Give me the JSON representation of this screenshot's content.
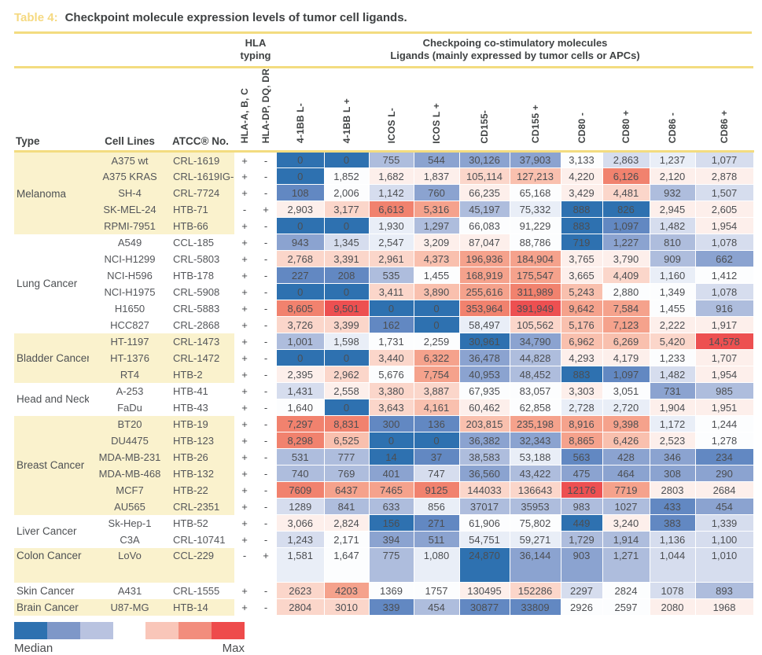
{
  "title": {
    "label": "Table 4:",
    "text": "Checkpoint molecule expression levels of tumor cell ligands."
  },
  "header": {
    "hla_group_line1": "HLA",
    "hla_group_line2": "typing",
    "costim_line1": "Checkpoing co-stimulatory molecules",
    "costim_line2": "Ligands (mainly expressed by tumor cells or APCs)",
    "col_type": "Type",
    "col_cell_lines": "Cell Lines",
    "col_atcc": "ATCC® No.",
    "rotated_columns": [
      "HLA-A, B, C",
      "HLA-DP, DQ, DR",
      "4-1BB L-",
      "4-1BB L +",
      "ICOS L-",
      "ICOS L +",
      "CD155-",
      "CD155 +",
      "CD80 -",
      "CD80 +",
      "CD86 -",
      "CD86 +"
    ]
  },
  "palette": {
    "b5": "#2e71b0",
    "b4": "#6288c2",
    "b3": "#8ba3d0",
    "b2": "#aebddd",
    "b1": "#d6ddee",
    "b0": "#e9eef7",
    "w": "#fcfdfe",
    "r0": "#fdefeb",
    "r1": "#fbd6ca",
    "r2": "#f9c0ae",
    "r3": "#f5a28c",
    "r4": "#f1826e",
    "r5": "#ed5051"
  },
  "groups": [
    {
      "type": "Melanoma",
      "shaded": true,
      "rows": [
        {
          "cell_line": "A375 wt",
          "atcc": "CRL-1619",
          "hla": [
            "+",
            "-"
          ],
          "values": [
            "0",
            "0",
            "755",
            "544",
            "30,126",
            "37,903",
            "3,133",
            "2,863",
            "1,237",
            "1,077"
          ],
          "colors": [
            "b5",
            "b5",
            "b2",
            "b3",
            "b3",
            "b3",
            "w",
            "b1",
            "b0",
            "b1"
          ]
        },
        {
          "cell_line": "A375 KRAS",
          "atcc": "CRL-1619IG-1",
          "hla": [
            "+",
            "-"
          ],
          "values": [
            "0",
            "1,852",
            "1,682",
            "1,837",
            "105,114",
            "127,213",
            "4,220",
            "6,126",
            "2,120",
            "2,878"
          ],
          "colors": [
            "b5",
            "w",
            "r0",
            "r0",
            "r1",
            "r2",
            "r0",
            "r4",
            "r0",
            "r0"
          ]
        },
        {
          "cell_line": "SH-4",
          "atcc": "CRL-7724",
          "hla": [
            "+",
            "-"
          ],
          "values": [
            "108",
            "2,006",
            "1,142",
            "760",
            "66,235",
            "65,168",
            "3,429",
            "4,481",
            "932",
            "1,507"
          ],
          "colors": [
            "b4",
            "w",
            "b1",
            "b3",
            "r0",
            "w",
            "r0",
            "r1",
            "b2",
            "b1"
          ]
        },
        {
          "cell_line": "SK-MEL-24",
          "atcc": "HTB-71",
          "hla": [
            "-",
            "+"
          ],
          "values": [
            "2,903",
            "3,177",
            "6,613",
            "5,316",
            "45,197",
            "75,332",
            "888",
            "826",
            "2,945",
            "2,605"
          ],
          "colors": [
            "r0",
            "r1",
            "r4",
            "r3",
            "b2",
            "b0",
            "b5",
            "b5",
            "r0",
            "r0"
          ]
        },
        {
          "cell_line": "RPMI-7951",
          "atcc": "HTB-66",
          "hla": [
            "+",
            "-"
          ],
          "values": [
            "0",
            "0",
            "1,930",
            "1,297",
            "66,083",
            "91,229",
            "883",
            "1,097",
            "1,482",
            "1,954"
          ],
          "colors": [
            "b5",
            "b5",
            "b0",
            "b2",
            "w",
            "w",
            "b5",
            "b4",
            "b1",
            "r0"
          ]
        }
      ]
    },
    {
      "type": "Lung Cancer",
      "shaded": false,
      "rows": [
        {
          "cell_line": "A549",
          "atcc": "CCL-185",
          "hla": [
            "+",
            "-"
          ],
          "values": [
            "943",
            "1,345",
            "2,547",
            "3,209",
            "87,047",
            "88,786",
            "719",
            "1,227",
            "810",
            "1,078"
          ],
          "colors": [
            "b3",
            "b1",
            "b0",
            "r0",
            "r0",
            "w",
            "b5",
            "b3",
            "b2",
            "b1"
          ]
        },
        {
          "cell_line": "NCI-H1299",
          "atcc": "CRL-5803",
          "hla": [
            "+",
            "-"
          ],
          "values": [
            "2,768",
            "3,391",
            "2,961",
            "4,373",
            "196,936",
            "184,904",
            "3,765",
            "3,790",
            "909",
            "662"
          ],
          "colors": [
            "r1",
            "r1",
            "r1",
            "r2",
            "r3",
            "r3",
            "r0",
            "r0",
            "b2",
            "b3"
          ]
        },
        {
          "cell_line": "NCI-H596",
          "atcc": "HTB-178",
          "hla": [
            "+",
            "-"
          ],
          "values": [
            "227",
            "208",
            "535",
            "1,455",
            "168,919",
            "175,547",
            "3,665",
            "4,409",
            "1,160",
            "1,412"
          ],
          "colors": [
            "b4",
            "b4",
            "b2",
            "w",
            "r3",
            "r3",
            "r0",
            "r1",
            "b0",
            "w"
          ]
        },
        {
          "cell_line": "NCI-H1975",
          "atcc": "CRL-5908",
          "hla": [
            "+",
            "-"
          ],
          "values": [
            "0",
            "0",
            "3,411",
            "3,890",
            "255,616",
            "311,989",
            "5,243",
            "2,880",
            "1,349",
            "1,078"
          ],
          "colors": [
            "b5",
            "b5",
            "r1",
            "r2",
            "r3",
            "r4",
            "r2",
            "w",
            "w",
            "b1"
          ]
        },
        {
          "cell_line": "H1650",
          "atcc": "CRL-5883",
          "hla": [
            "+",
            "-"
          ],
          "values": [
            "8,605",
            "9,501",
            "0",
            "0",
            "353,964",
            "391,949",
            "9,642",
            "7,584",
            "1,455",
            "916"
          ],
          "colors": [
            "r4",
            "r5",
            "b5",
            "b5",
            "r4",
            "r5",
            "r3",
            "r3",
            "w",
            "b2"
          ]
        },
        {
          "cell_line": "HCC827",
          "atcc": "CRL-2868",
          "hla": [
            "+",
            "-"
          ],
          "values": [
            "3,726",
            "3,399",
            "162",
            "0",
            "58,497",
            "105,562",
            "5,176",
            "7,123",
            "2,222",
            "1,917"
          ],
          "colors": [
            "r1",
            "r1",
            "b4",
            "b5",
            "b0",
            "r1",
            "r2",
            "r3",
            "r0",
            "r0"
          ]
        }
      ]
    },
    {
      "type": "Bladder Cancer",
      "shaded": true,
      "rows": [
        {
          "cell_line": "HT-1197",
          "atcc": "CRL-1473",
          "hla": [
            "+",
            "-"
          ],
          "values": [
            "1,001",
            "1,598",
            "1,731",
            "2,259",
            "30,961",
            "34,790",
            "6,962",
            "6,269",
            "5,420",
            "14,578"
          ],
          "colors": [
            "b2",
            "b0",
            "w",
            "w",
            "b5",
            "b3",
            "r2",
            "r2",
            "r1",
            "r5"
          ]
        },
        {
          "cell_line": "HT-1376",
          "atcc": "CRL-1472",
          "hla": [
            "+",
            "-"
          ],
          "values": [
            "0",
            "0",
            "3,440",
            "6,322",
            "36,478",
            "44,828",
            "4,293",
            "4,179",
            "1,233",
            "1,707"
          ],
          "colors": [
            "b5",
            "b5",
            "r1",
            "r3",
            "b3",
            "b2",
            "r0",
            "r0",
            "w",
            "r0"
          ]
        },
        {
          "cell_line": "RT4",
          "atcc": "HTB-2",
          "hla": [
            "+",
            "-"
          ],
          "values": [
            "2,395",
            "2,962",
            "5,676",
            "7,754",
            "40,953",
            "48,452",
            "883",
            "1,097",
            "1,482",
            "1,954"
          ],
          "colors": [
            "r0",
            "r1",
            "w",
            "r3",
            "b3",
            "b2",
            "b5",
            "b4",
            "b1",
            "r0"
          ]
        }
      ]
    },
    {
      "type": "Head and Neck Cancer",
      "shaded": false,
      "rows": [
        {
          "cell_line": "A-253",
          "atcc": "HTB-41",
          "hla": [
            "+",
            "-"
          ],
          "values": [
            "1,431",
            "2,558",
            "3,380",
            "3,887",
            "67,935",
            "83,057",
            "3,303",
            "3,051",
            "731",
            "985"
          ],
          "colors": [
            "b1",
            "r0",
            "r1",
            "r1",
            "w",
            "w",
            "r0",
            "w",
            "b3",
            "b2"
          ]
        },
        {
          "cell_line": "FaDu",
          "atcc": "HTB-43",
          "hla": [
            "+",
            "-"
          ],
          "values": [
            "1,640",
            "0",
            "3,643",
            "4,161",
            "60,462",
            "62,858",
            "2,728",
            "2,720",
            "1,904",
            "1,951"
          ],
          "colors": [
            "w",
            "b5",
            "r1",
            "r2",
            "r0",
            "w",
            "b0",
            "b0",
            "r0",
            "r0"
          ]
        }
      ]
    },
    {
      "type": "Breast Cancer",
      "shaded": true,
      "rows": [
        {
          "cell_line": "BT20",
          "atcc": "HTB-19",
          "hla": [
            "+",
            "-"
          ],
          "values": [
            "7,297",
            "8,831",
            "300",
            "136",
            "203,815",
            "235,198",
            "8,916",
            "9,398",
            "1,172",
            "1,244"
          ],
          "colors": [
            "r4",
            "r4",
            "b4",
            "b4",
            "r2",
            "r3",
            "r3",
            "r3",
            "b0",
            "w"
          ]
        },
        {
          "cell_line": "DU4475",
          "atcc": "HTB-123",
          "hla": [
            "+",
            "-"
          ],
          "values": [
            "8,298",
            "6,525",
            "0",
            "0",
            "36,382",
            "32,343",
            "8,865",
            "6,426",
            "2,523",
            "1,278"
          ],
          "colors": [
            "r4",
            "r2",
            "b5",
            "b5",
            "b3",
            "b3",
            "r3",
            "r2",
            "r0",
            "w"
          ]
        },
        {
          "cell_line": "MDA-MB-231",
          "atcc": "HTB-26",
          "hla": [
            "+",
            "-"
          ],
          "values": [
            "531",
            "777",
            "14",
            "37",
            "38,583",
            "53,188",
            "563",
            "428",
            "346",
            "234"
          ],
          "colors": [
            "b2",
            "b2",
            "b5",
            "b4",
            "b2",
            "b0",
            "b4",
            "b3",
            "b3",
            "b4"
          ]
        },
        {
          "cell_line": "MDA-MB-468",
          "atcc": "HTB-132",
          "hla": [
            "+",
            "-"
          ],
          "values": [
            "740",
            "769",
            "401",
            "747",
            "36,560",
            "43,422",
            "475",
            "464",
            "308",
            "290"
          ],
          "colors": [
            "b2",
            "b2",
            "b3",
            "b1",
            "b3",
            "b2",
            "b3",
            "b3",
            "b3",
            "b3"
          ]
        },
        {
          "cell_line": "MCF7",
          "atcc": "HTB-22",
          "hla": [
            "+",
            "-"
          ],
          "values": [
            "7609",
            "6437",
            "7465",
            "9125",
            "144033",
            "136643",
            "12176",
            "7719",
            "2803",
            "2684"
          ],
          "colors": [
            "r4",
            "r3",
            "r3",
            "r4",
            "r1",
            "r1",
            "r5",
            "r3",
            "r0",
            "r0"
          ]
        },
        {
          "cell_line": "AU565",
          "atcc": "CRL-2351",
          "hla": [
            "+",
            "-"
          ],
          "values": [
            "1289",
            "841",
            "633",
            "856",
            "37017",
            "35953",
            "983",
            "1027",
            "433",
            "454"
          ],
          "colors": [
            "b1",
            "b2",
            "b2",
            "b0",
            "b2",
            "b2",
            "b2",
            "b2",
            "b4",
            "b3"
          ]
        }
      ]
    },
    {
      "type": "Liver Cancer",
      "shaded": false,
      "rows": [
        {
          "cell_line": "Sk-Hep-1",
          "atcc": "HTB-52",
          "hla": [
            "+",
            "-"
          ],
          "values": [
            "3,066",
            "2,824",
            "156",
            "271",
            "61,906",
            "75,802",
            "449",
            "3,240",
            "383",
            "1,339"
          ],
          "colors": [
            "r0",
            "r0",
            "b5",
            "b4",
            "w",
            "w",
            "b5",
            "r0",
            "b4",
            "b1"
          ]
        },
        {
          "cell_line": "C3A",
          "atcc": "CRL-10741",
          "hla": [
            "+",
            "-"
          ],
          "values": [
            "1,243",
            "2,171",
            "394",
            "511",
            "54,751",
            "59,271",
            "1,729",
            "1,914",
            "1,136",
            "1,100"
          ],
          "colors": [
            "b1",
            "w",
            "b3",
            "b3",
            "b0",
            "b0",
            "b2",
            "b2",
            "b1",
            "b1"
          ]
        }
      ]
    },
    {
      "type": "Colon Cancer",
      "shaded": true,
      "rows": [
        {
          "cell_line": "LoVo",
          "atcc": "CCL-229",
          "hla": [
            "-",
            "+"
          ],
          "tall": true,
          "values": [
            "1,581",
            "1,647",
            "775",
            "1,080",
            "24,870",
            "36,144",
            "903",
            "1,271",
            "1,044",
            "1,010"
          ],
          "colors": [
            "b0",
            "w",
            "b2",
            "b0",
            "b5",
            "b3",
            "b3",
            "b2",
            "b1",
            "b1"
          ]
        }
      ]
    },
    {
      "type": "Skin Cancer",
      "shaded": false,
      "rows": [
        {
          "cell_line": "A431",
          "atcc": "CRL-1555",
          "hla": [
            "+",
            "-"
          ],
          "values": [
            "2623",
            "4203",
            "1369",
            "1757",
            "130495",
            "152286",
            "2297",
            "2824",
            "1078",
            "893"
          ],
          "colors": [
            "r1",
            "r3",
            "w",
            "w",
            "r0",
            "r1",
            "b1",
            "w",
            "b1",
            "b2"
          ]
        }
      ]
    },
    {
      "type": "Brain Cancer",
      "shaded": true,
      "rows": [
        {
          "cell_line": "U87-MG",
          "atcc": "HTB-14",
          "hla": [
            "+",
            "-"
          ],
          "values": [
            "2804",
            "3010",
            "339",
            "454",
            "30877",
            "33809",
            "2926",
            "2597",
            "2080",
            "1968"
          ],
          "colors": [
            "r1",
            "r1",
            "b4",
            "b2",
            "b4",
            "b4",
            "w",
            "w",
            "r0",
            "r0"
          ]
        }
      ]
    }
  ],
  "legend": {
    "median_label": "Median",
    "max_label": "Max",
    "blue_colors": [
      "#2e71b0",
      "#7e97c8",
      "#b9c3e0"
    ],
    "red_colors": [
      "#f9c6b9",
      "#f28d7d",
      "#ee4b4b"
    ]
  }
}
